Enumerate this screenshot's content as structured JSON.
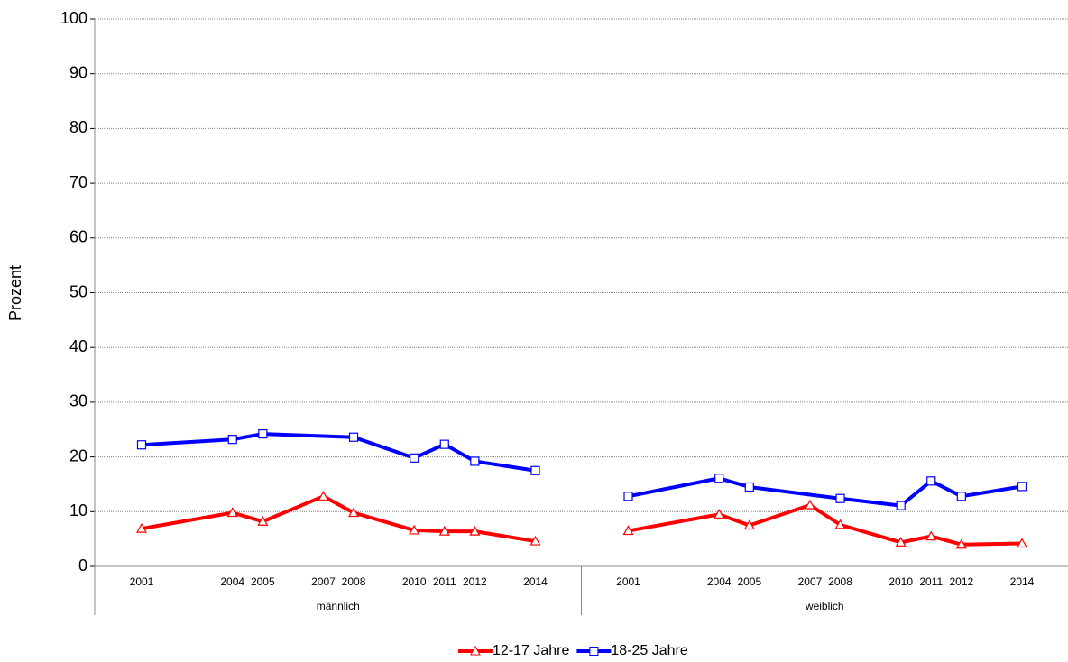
{
  "chart_data": {
    "type": "line",
    "y_label": "Prozent",
    "group_labels": [
      "männlich",
      "weiblich"
    ],
    "x": [
      2001,
      2004,
      2005,
      2007,
      2008,
      2010,
      2011,
      2012,
      2014,
      2001,
      2004,
      2005,
      2007,
      2008,
      2010,
      2011,
      2012,
      2014
    ],
    "series": [
      {
        "name": "12-17 Jahre",
        "color": "#ff0000",
        "marker": "triangle",
        "values": [
          6.9,
          9.8,
          8.2,
          12.8,
          9.8,
          6.6,
          6.4,
          6.4,
          4.6,
          6.5,
          9.5,
          7.5,
          11.2,
          7.6,
          4.4,
          5.5,
          4.0,
          4.2
        ]
      },
      {
        "name": "18-25 Jahre",
        "color": "#0000ff",
        "marker": "square",
        "values": [
          22.2,
          23.2,
          24.2,
          null,
          23.6,
          19.8,
          22.3,
          19.2,
          17.5,
          12.8,
          16.1,
          14.5,
          null,
          12.4,
          11.1,
          15.6,
          12.8,
          14.6
        ]
      }
    ],
    "span_gaps": true,
    "ylim": [
      0,
      100
    ],
    "yticks": [
      0,
      10,
      20,
      30,
      40,
      50,
      60,
      70,
      80,
      90,
      100
    ],
    "grid": true,
    "legend": "bottom"
  }
}
